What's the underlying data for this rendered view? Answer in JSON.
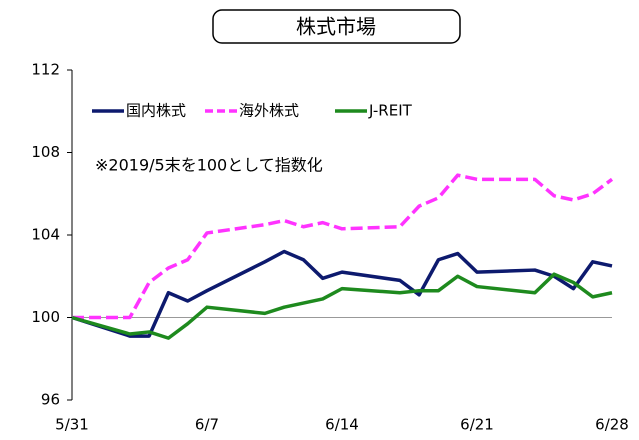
{
  "chart_data": {
    "type": "line",
    "title": "株式市場",
    "annotation": "※2019/5末を100として指数化",
    "x": [
      "5/31",
      "6/3",
      "6/4",
      "6/5",
      "6/6",
      "6/7",
      "6/10",
      "6/11",
      "6/12",
      "6/13",
      "6/14",
      "6/17",
      "6/18",
      "6/19",
      "6/20",
      "6/21",
      "6/24",
      "6/25",
      "6/26",
      "6/27",
      "6/28"
    ],
    "series": [
      {
        "name": "国内株式",
        "color": "#0d1a6e",
        "dash": false,
        "values": [
          100,
          99.1,
          99.1,
          101.2,
          100.8,
          101.3,
          102.7,
          103.2,
          102.8,
          101.9,
          102.2,
          101.8,
          101.1,
          102.8,
          103.1,
          102.2,
          102.3,
          102.0,
          101.4,
          102.7,
          102.5
        ]
      },
      {
        "name": "海外株式",
        "color": "#ff33ff",
        "dash": true,
        "values": [
          100,
          100,
          101.7,
          102.4,
          102.8,
          104.1,
          104.5,
          104.7,
          104.4,
          104.6,
          104.3,
          104.4,
          105.4,
          105.8,
          106.9,
          106.7,
          106.7,
          105.9,
          105.7,
          106.0,
          106.7
        ]
      },
      {
        "name": "J-REIT",
        "color": "#1e8a1e",
        "dash": false,
        "values": [
          100,
          99.2,
          99.3,
          99.0,
          99.7,
          100.5,
          100.2,
          100.5,
          100.7,
          100.9,
          101.4,
          101.2,
          101.3,
          101.3,
          102.0,
          101.5,
          101.2,
          102.1,
          101.7,
          101.0,
          101.2
        ]
      }
    ],
    "xlim": [
      "5/31",
      "6/28"
    ],
    "xticks": [
      "5/31",
      "6/7",
      "6/14",
      "6/21",
      "6/28"
    ],
    "ylim": [
      96,
      112
    ],
    "yticks": [
      96,
      100,
      104,
      108,
      112
    ],
    "hline": 100,
    "legend": "top-left"
  }
}
